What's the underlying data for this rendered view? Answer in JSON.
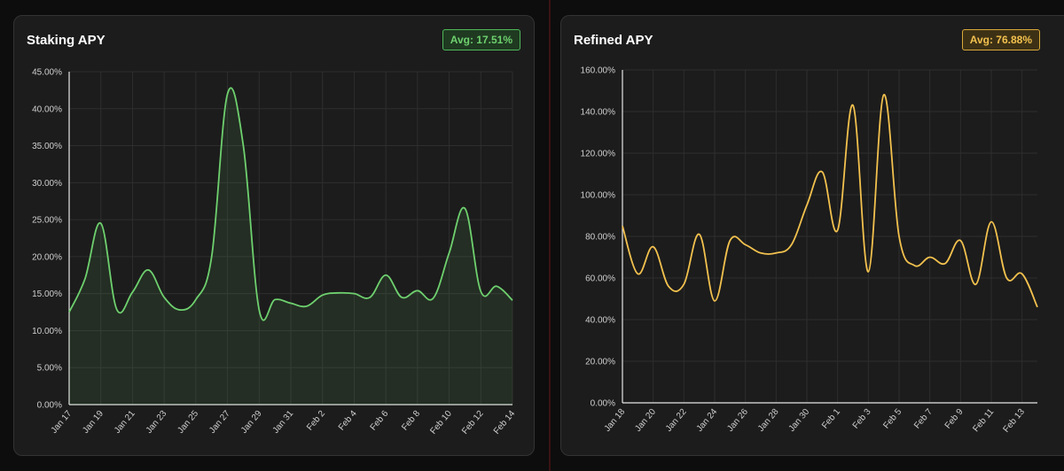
{
  "panels": [
    {
      "title": "Staking APY",
      "avg_label": "Avg: 17.51%",
      "color": "#6ed06e",
      "fill": "rgba(110,208,110,0.10)"
    },
    {
      "title": "Refined APY",
      "avg_label": "Avg: 76.88%",
      "color": "#f2c14e",
      "fill": "none"
    }
  ],
  "chart_data": [
    {
      "type": "area",
      "title": "Staking APY",
      "y_ticks": [
        "0.00%",
        "5.00%",
        "10.00%",
        "15.00%",
        "20.00%",
        "25.00%",
        "30.00%",
        "35.00%",
        "40.00%",
        "45.00%"
      ],
      "ylim": [
        0,
        45
      ],
      "x_tick_labels": [
        "Jan 17",
        "Jan 19",
        "Jan 21",
        "Jan 23",
        "Jan 25",
        "Jan 27",
        "Jan 29",
        "Jan 31",
        "Feb 2",
        "Feb 4",
        "Feb 6",
        "Feb 8",
        "Feb 10",
        "Feb 12",
        "Feb 14"
      ],
      "x": [
        "Jan 17",
        "Jan 18",
        "Jan 19",
        "Jan 20",
        "Jan 21",
        "Jan 22",
        "Jan 23",
        "Jan 24",
        "Jan 25",
        "Jan 26",
        "Jan 27",
        "Jan 28",
        "Jan 29",
        "Jan 30",
        "Jan 31",
        "Feb 1",
        "Feb 2",
        "Feb 3",
        "Feb 4",
        "Feb 5",
        "Feb 6",
        "Feb 7",
        "Feb 8",
        "Feb 9",
        "Feb 10",
        "Feb 11",
        "Feb 12",
        "Feb 13",
        "Feb 14"
      ],
      "values": [
        12.5,
        17.0,
        24.5,
        12.9,
        15.2,
        18.2,
        14.5,
        12.8,
        14.2,
        20.0,
        42.0,
        35.0,
        12.8,
        14.2,
        13.7,
        13.3,
        14.8,
        15.1,
        15.0,
        14.5,
        17.5,
        14.5,
        15.4,
        14.4,
        20.5,
        26.5,
        15.3,
        16.0,
        14.1
      ],
      "grid": true
    },
    {
      "type": "line",
      "title": "Refined APY",
      "y_ticks": [
        "0.00%",
        "20.00%",
        "40.00%",
        "60.00%",
        "80.00%",
        "100.00%",
        "120.00%",
        "140.00%",
        "160.00%"
      ],
      "ylim": [
        0,
        160
      ],
      "x_tick_labels": [
        "Jan 18",
        "Jan 20",
        "Jan 22",
        "Jan 24",
        "Jan 26",
        "Jan 28",
        "Jan 30",
        "Feb 1",
        "Feb 3",
        "Feb 5",
        "Feb 7",
        "Feb 9",
        "Feb 11",
        "Feb 13"
      ],
      "x": [
        "Jan 18",
        "Jan 19",
        "Jan 20",
        "Jan 21",
        "Jan 22",
        "Jan 23",
        "Jan 24",
        "Jan 25",
        "Jan 26",
        "Jan 27",
        "Jan 28",
        "Jan 29",
        "Jan 30",
        "Jan 31",
        "Feb 1",
        "Feb 2",
        "Feb 3",
        "Feb 4",
        "Feb 5",
        "Feb 6",
        "Feb 7",
        "Feb 8",
        "Feb 9",
        "Feb 10",
        "Feb 11",
        "Feb 12",
        "Feb 13",
        "Feb 14"
      ],
      "values": [
        85,
        62,
        75,
        56,
        57,
        81,
        49,
        78,
        76,
        72,
        72,
        76,
        95,
        111,
        83,
        143,
        63,
        148,
        80,
        66,
        70,
        67,
        78,
        57,
        87,
        60,
        62,
        46
      ],
      "grid": true
    }
  ]
}
